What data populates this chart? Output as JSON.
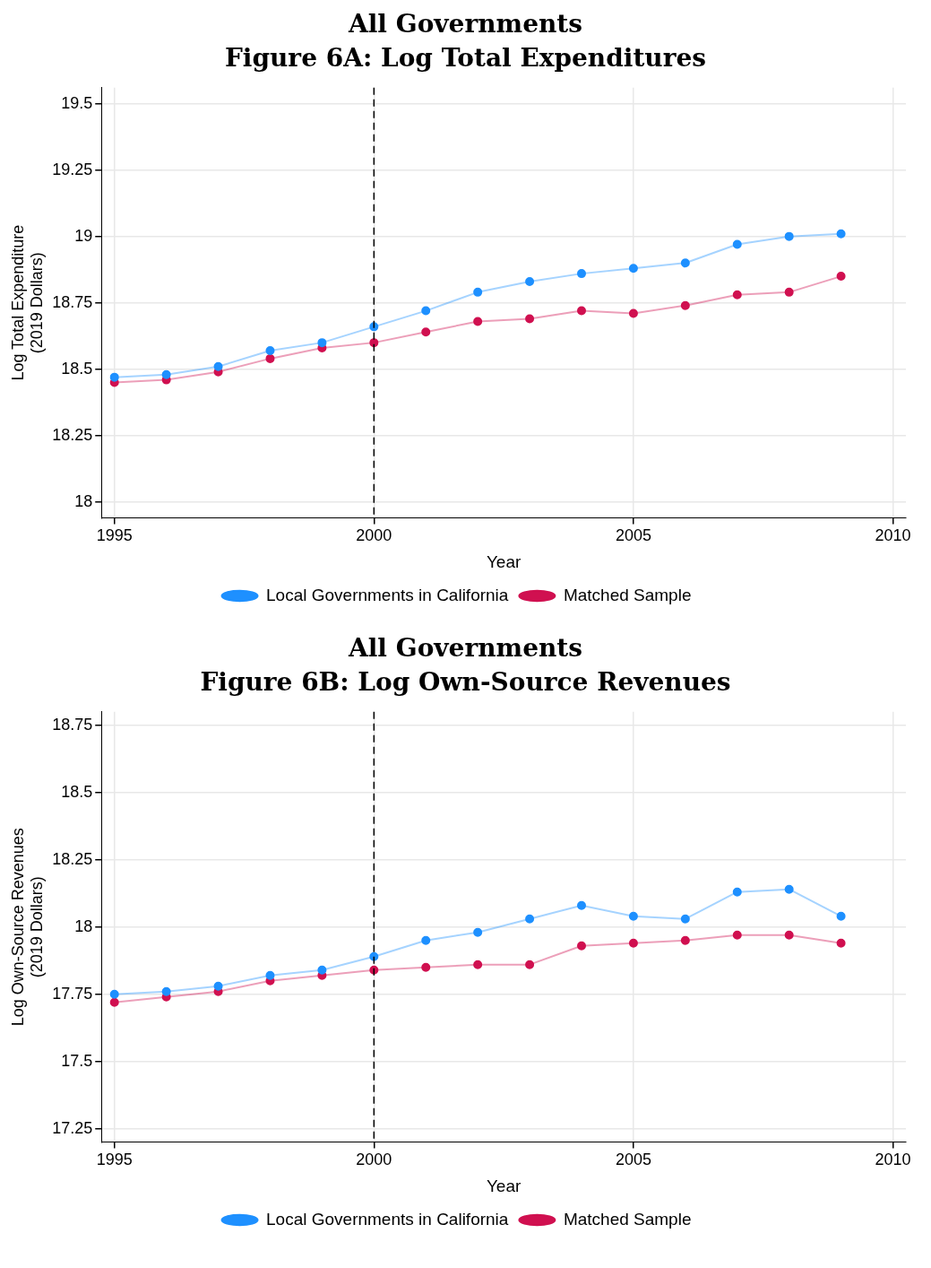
{
  "chart_data": [
    {
      "type": "line",
      "title": "All Governments",
      "subtitle": "Figure 6A: Log Total Expenditures",
      "xlabel": "Year",
      "ylabel": "Log Total Expenditure\n(2019 Dollars)",
      "x": [
        1995,
        1996,
        1997,
        1998,
        1999,
        2000,
        2001,
        2002,
        2003,
        2004,
        2005,
        2006,
        2007,
        2008,
        2009
      ],
      "xlim": [
        1994.75,
        2010.25
      ],
      "xticks": [
        1995,
        2000,
        2005,
        2010
      ],
      "ylim": [
        17.94,
        19.56
      ],
      "yticks": [
        18,
        18.25,
        18.5,
        18.75,
        19,
        19.25,
        19.5
      ],
      "grid": true,
      "legend": "bottom",
      "marker": "circle",
      "line_style": "solid",
      "ref_lines": [
        {
          "axis": "x",
          "value": 2000,
          "line_style": "dashed",
          "color": "#000000"
        }
      ],
      "series": [
        {
          "name": "Local Governments in California",
          "color": "#1e90ff",
          "values": [
            18.47,
            18.48,
            18.51,
            18.57,
            18.6,
            18.66,
            18.72,
            18.79,
            18.83,
            18.86,
            18.88,
            18.9,
            18.97,
            19.0,
            19.01
          ]
        },
        {
          "name": "Matched Sample",
          "color": "#d01050",
          "values": [
            18.45,
            18.46,
            18.49,
            18.54,
            18.58,
            18.6,
            18.64,
            18.68,
            18.69,
            18.72,
            18.71,
            18.74,
            18.78,
            18.79,
            18.85
          ]
        }
      ]
    },
    {
      "type": "line",
      "title": "All Governments",
      "subtitle": "Figure 6B: Log Own-Source Revenues",
      "xlabel": "Year",
      "ylabel": "Log Own-Source Revenues\n(2019 Dollars)",
      "x": [
        1995,
        1996,
        1997,
        1998,
        1999,
        2000,
        2001,
        2002,
        2003,
        2004,
        2005,
        2006,
        2007,
        2008,
        2009
      ],
      "xlim": [
        1994.75,
        2010.25
      ],
      "xticks": [
        1995,
        2000,
        2005,
        2010
      ],
      "ylim": [
        17.2,
        18.8
      ],
      "yticks": [
        17.25,
        17.5,
        17.75,
        18,
        18.25,
        18.5,
        18.75
      ],
      "grid": true,
      "legend": "bottom",
      "marker": "circle",
      "line_style": "solid",
      "ref_lines": [
        {
          "axis": "x",
          "value": 2000,
          "line_style": "dashed",
          "color": "#000000"
        }
      ],
      "series": [
        {
          "name": "Local Governments in California",
          "color": "#1e90ff",
          "values": [
            17.75,
            17.76,
            17.78,
            17.82,
            17.84,
            17.89,
            17.95,
            17.98,
            18.03,
            18.08,
            18.04,
            18.03,
            18.13,
            18.14,
            18.04
          ]
        },
        {
          "name": "Matched Sample",
          "color": "#d01050",
          "values": [
            17.72,
            17.74,
            17.76,
            17.8,
            17.82,
            17.84,
            17.85,
            17.86,
            17.86,
            17.93,
            17.94,
            17.95,
            17.97,
            17.97,
            17.94
          ]
        }
      ]
    }
  ]
}
